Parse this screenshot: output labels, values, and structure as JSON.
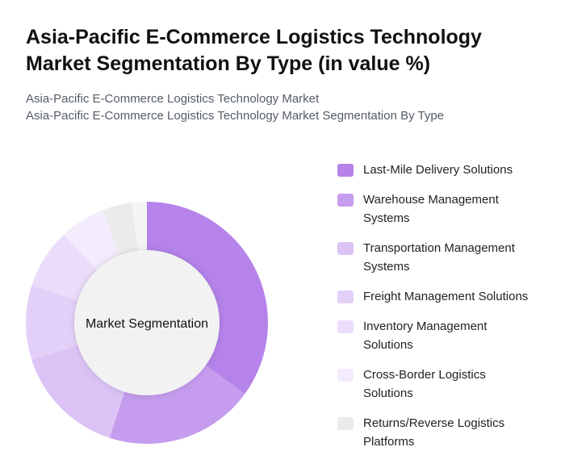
{
  "chart_data": {
    "type": "pie",
    "title": "Asia-Pacific E-Commerce Logistics Technology Market Segmentation By Type (in value %)",
    "subtitle_lines": [
      "Asia-Pacific E-Commerce Logistics Technology Market",
      "Asia-Pacific E-Commerce Logistics Technology Market Segmentation By Type"
    ],
    "center_label": "Market Segmentation",
    "legend_position": "right",
    "slices": [
      {
        "label": "Last-Mile Delivery Solutions",
        "value": 35,
        "color": "#b583ea"
      },
      {
        "label": "Warehouse Management Systems",
        "value": 20,
        "color": "#c59cee"
      },
      {
        "label": "Transportation Management Systems",
        "value": 15,
        "color": "#dcc3f6"
      },
      {
        "label": "Freight Management Solutions",
        "value": 10,
        "color": "#e3d0f8"
      },
      {
        "label": "Inventory Management Solutions",
        "value": 8,
        "color": "#ebdcfa"
      },
      {
        "label": "Cross-Border Logistics Solutions",
        "value": 6,
        "color": "#f3ecfc"
      },
      {
        "label": "Returns/Reverse Logistics Platforms",
        "value": 4,
        "color": "#ebebeb"
      },
      {
        "label": "",
        "value": 2,
        "color": "#f5f5f5"
      }
    ]
  }
}
